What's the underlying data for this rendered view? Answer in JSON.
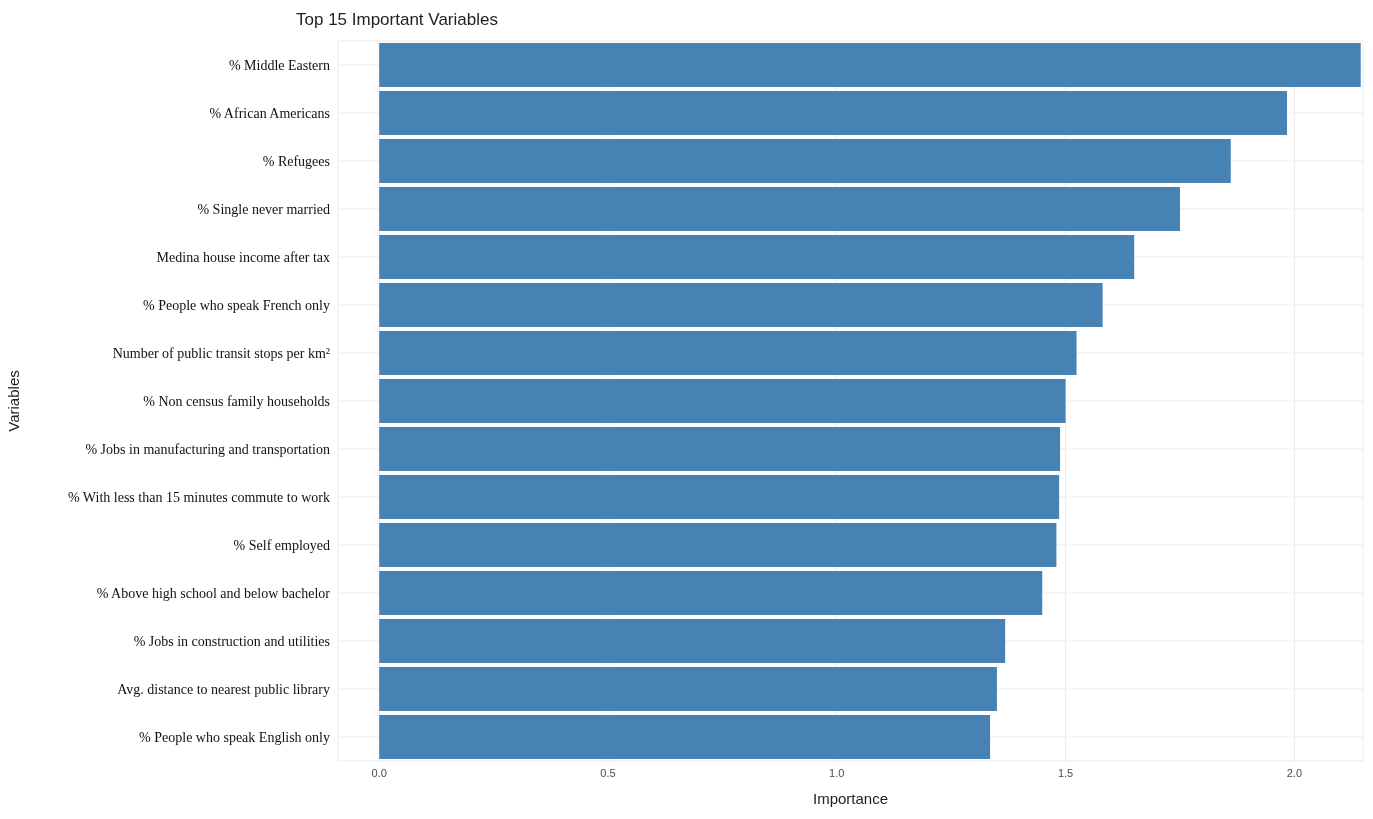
{
  "chart_data": {
    "type": "bar",
    "orientation": "horizontal",
    "title": "Top 15 Important Variables",
    "xlabel": "Importance",
    "ylabel": "Variables",
    "categories": [
      "% Middle Eastern",
      "% African Americans",
      "% Refugees",
      "% Single never married",
      "Medina house income after tax",
      "% People who speak French only",
      "Number of public transit stops per km²",
      "% Non census family households",
      "% Jobs in manufacturing and transportation",
      "% With less than 15 minutes commute to work",
      "% Self employed",
      "% Above high school and below bachelor",
      "% Jobs in construction and utilities",
      "Avg. distance to nearest public library",
      "% People who speak English only"
    ],
    "values": [
      2.145,
      1.984,
      1.861,
      1.75,
      1.65,
      1.581,
      1.524,
      1.5,
      1.488,
      1.486,
      1.48,
      1.449,
      1.368,
      1.35,
      1.335
    ],
    "color": "#4682b4",
    "xlim": [
      -0.09,
      2.15
    ],
    "xticks": [
      {
        "value": 0,
        "label": "0.0"
      },
      {
        "value": 0.5,
        "label": "0.5"
      },
      {
        "value": 1,
        "label": "1.0"
      },
      {
        "value": 1.5,
        "label": "1.5"
      },
      {
        "value": 2,
        "label": "2.0"
      }
    ],
    "grid": true
  }
}
